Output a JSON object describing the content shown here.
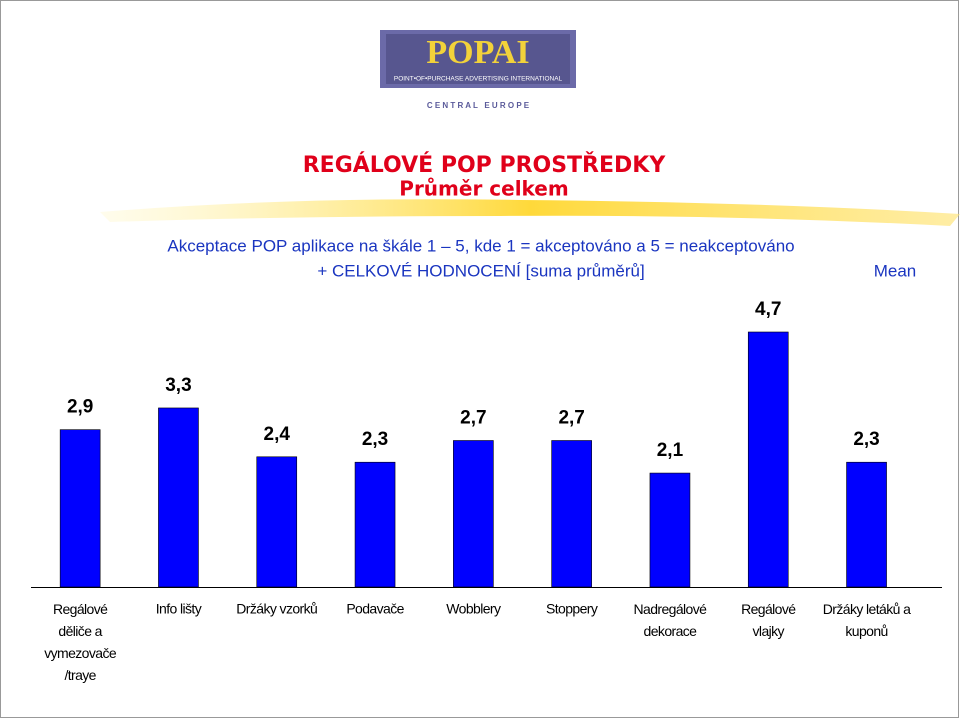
{
  "logo": {
    "name": "POPAI",
    "line1": "POINT•OF•PURCHASE ADVERTISING INTERNATIONAL",
    "line2": "C E N T R A L   E U R O P E"
  },
  "chart_data": {
    "type": "bar",
    "title": "REGÁLOVÉ POP PROSTŘEDKY",
    "subtitle": "Průměr celkem",
    "description": [
      "Akceptace POP aplikace na škále 1 – 5, kde 1 = akceptováno a 5 = neakceptováno",
      "+ CELKOVÉ HODNOCENÍ [suma průměrů]"
    ],
    "categories": [
      "Regálové\nděliče a\nvymezovače\n/traye",
      "Info lišty",
      "Držáky vzorků",
      "Podavače",
      "Wobblery",
      "Stoppery",
      "Nadregálové\ndekorace",
      "Regálové\nvlajky",
      "Držáky letáků a\nkuponů"
    ],
    "series": [
      {
        "name": "Mean",
        "color": "#0000ff",
        "values": [
          2.9,
          3.3,
          2.4,
          2.3,
          2.7,
          2.7,
          2.1,
          4.7,
          2.3
        ],
        "value_labels": [
          "2,9",
          "3,3",
          "2,4",
          "2,3",
          "2,7",
          "2,7",
          "2,1",
          "4,7",
          "2,3"
        ]
      }
    ]
  }
}
